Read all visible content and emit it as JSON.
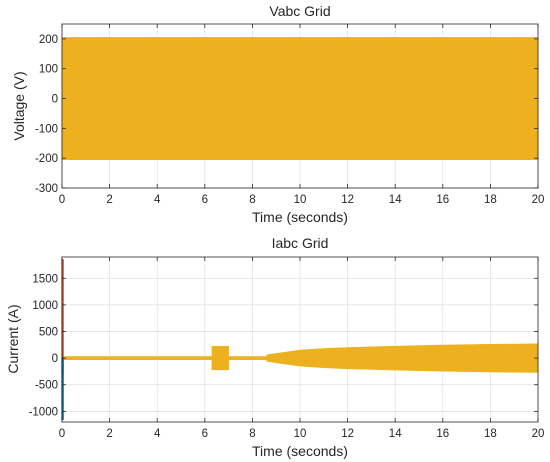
{
  "chart_data": [
    {
      "type": "area",
      "title": "Vabc Grid",
      "xlabel": "Time (seconds)",
      "ylabel": "Voltage (V)",
      "xlim": [
        0,
        20
      ],
      "ylim": [
        -300,
        250
      ],
      "xticks": [
        0,
        2,
        4,
        6,
        8,
        10,
        12,
        14,
        16,
        18,
        20
      ],
      "yticks": [
        -300,
        -200,
        -100,
        0,
        100,
        200
      ],
      "grid": true,
      "series": [
        {
          "color": "#EDB120",
          "envelope_x": [
            0,
            20
          ],
          "envelope_upper": [
            205,
            205
          ],
          "envelope_lower": [
            -205,
            -205
          ]
        }
      ]
    },
    {
      "type": "area",
      "title": "Iabc Grid",
      "xlabel": "Time (seconds)",
      "ylabel": "Current (A)",
      "xlim": [
        0,
        20
      ],
      "ylim": [
        -1200,
        1900
      ],
      "xticks": [
        0,
        2,
        4,
        6,
        8,
        10,
        12,
        14,
        16,
        18,
        20
      ],
      "yticks": [
        -1000,
        -500,
        0,
        500,
        1000,
        1500
      ],
      "grid": true,
      "series": [
        {
          "color": "#EDB120",
          "envelope_x": [
            0,
            6.3,
            6.3,
            7.0,
            7.0,
            8.6,
            8.6,
            9.2,
            10,
            11,
            12,
            14,
            16,
            18,
            20
          ],
          "envelope_upper": [
            30,
            30,
            220,
            220,
            30,
            30,
            60,
            100,
            150,
            180,
            200,
            225,
            245,
            260,
            270
          ],
          "envelope_lower": [
            -30,
            -30,
            -220,
            -220,
            -30,
            -30,
            -60,
            -100,
            -150,
            -180,
            -200,
            -225,
            -245,
            -260,
            -270
          ]
        },
        {
          "color": "#D95319",
          "envelope_x": [
            0,
            0.05
          ],
          "envelope_upper": [
            1850,
            1850
          ],
          "envelope_lower": [
            -300,
            -300
          ]
        },
        {
          "color": "#0072BD",
          "envelope_x": [
            0,
            0.05
          ],
          "envelope_upper": [
            0,
            0
          ],
          "envelope_lower": [
            -1150,
            -1150
          ]
        }
      ]
    }
  ]
}
